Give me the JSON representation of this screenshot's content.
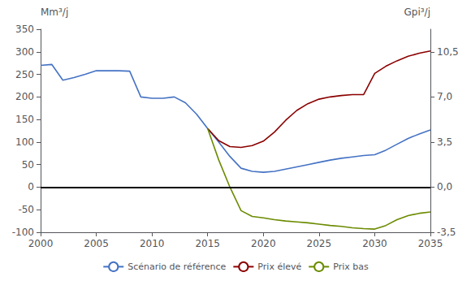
{
  "chart_data": {
    "type": "line",
    "y_label": "Mm³/j",
    "y2_label": "Gpi³/j",
    "xlim": [
      2000,
      2035
    ],
    "xticks": [
      2000,
      2005,
      2010,
      2015,
      2020,
      2025,
      2030,
      2035
    ],
    "ylim": [
      -100,
      350
    ],
    "yticks": [
      -100,
      -50,
      0,
      50,
      100,
      150,
      200,
      250,
      300,
      350
    ],
    "y2lim": [
      -3.5,
      12.25
    ],
    "y2ticks": [
      {
        "value": -3.5,
        "label": "-3,5"
      },
      {
        "value": 0.0,
        "label": "0,0"
      },
      {
        "value": 3.5,
        "label": "3,5"
      },
      {
        "value": 7.0,
        "label": "7,0"
      },
      {
        "value": 10.5,
        "label": "10,5"
      }
    ],
    "grid": false,
    "legend": "bottom",
    "reference_lines": [
      {
        "y": 0,
        "color": "#000000"
      }
    ],
    "series": [
      {
        "name": "Scénario de référence",
        "color": "#4472C4",
        "x": [
          2000,
          2001,
          2002,
          2003,
          2004,
          2005,
          2006,
          2007,
          2008,
          2009,
          2010,
          2011,
          2012,
          2013,
          2014,
          2015,
          2016,
          2017,
          2018,
          2019,
          2020,
          2021,
          2022,
          2023,
          2024,
          2025,
          2026,
          2027,
          2028,
          2029,
          2030,
          2031,
          2032,
          2033,
          2034,
          2035
        ],
        "values": [
          270,
          272,
          237,
          243,
          250,
          258,
          258,
          258,
          257,
          200,
          197,
          197,
          200,
          187,
          162,
          130,
          100,
          68,
          42,
          35,
          33,
          35,
          40,
          45,
          50,
          55,
          60,
          64,
          67,
          70,
          72,
          82,
          95,
          108,
          118,
          127
        ]
      },
      {
        "name": "Prix élevé",
        "color": "#8B0000",
        "x": [
          2015,
          2016,
          2017,
          2018,
          2019,
          2020,
          2021,
          2022,
          2023,
          2024,
          2025,
          2026,
          2027,
          2028,
          2029,
          2030,
          2031,
          2032,
          2033,
          2034,
          2035
        ],
        "values": [
          130,
          103,
          90,
          88,
          92,
          102,
          122,
          148,
          170,
          185,
          195,
          200,
          203,
          205,
          205,
          252,
          268,
          280,
          290,
          297,
          302
        ]
      },
      {
        "name": "Prix bas",
        "color": "#6B8B00",
        "x": [
          2015,
          2016,
          2017,
          2018,
          2019,
          2020,
          2021,
          2022,
          2023,
          2024,
          2025,
          2026,
          2027,
          2028,
          2029,
          2030,
          2031,
          2032,
          2033,
          2034,
          2035
        ],
        "values": [
          130,
          60,
          0,
          -52,
          -65,
          -68,
          -72,
          -75,
          -77,
          -79,
          -82,
          -85,
          -87,
          -90,
          -92,
          -93,
          -85,
          -72,
          -63,
          -58,
          -55
        ]
      }
    ]
  }
}
